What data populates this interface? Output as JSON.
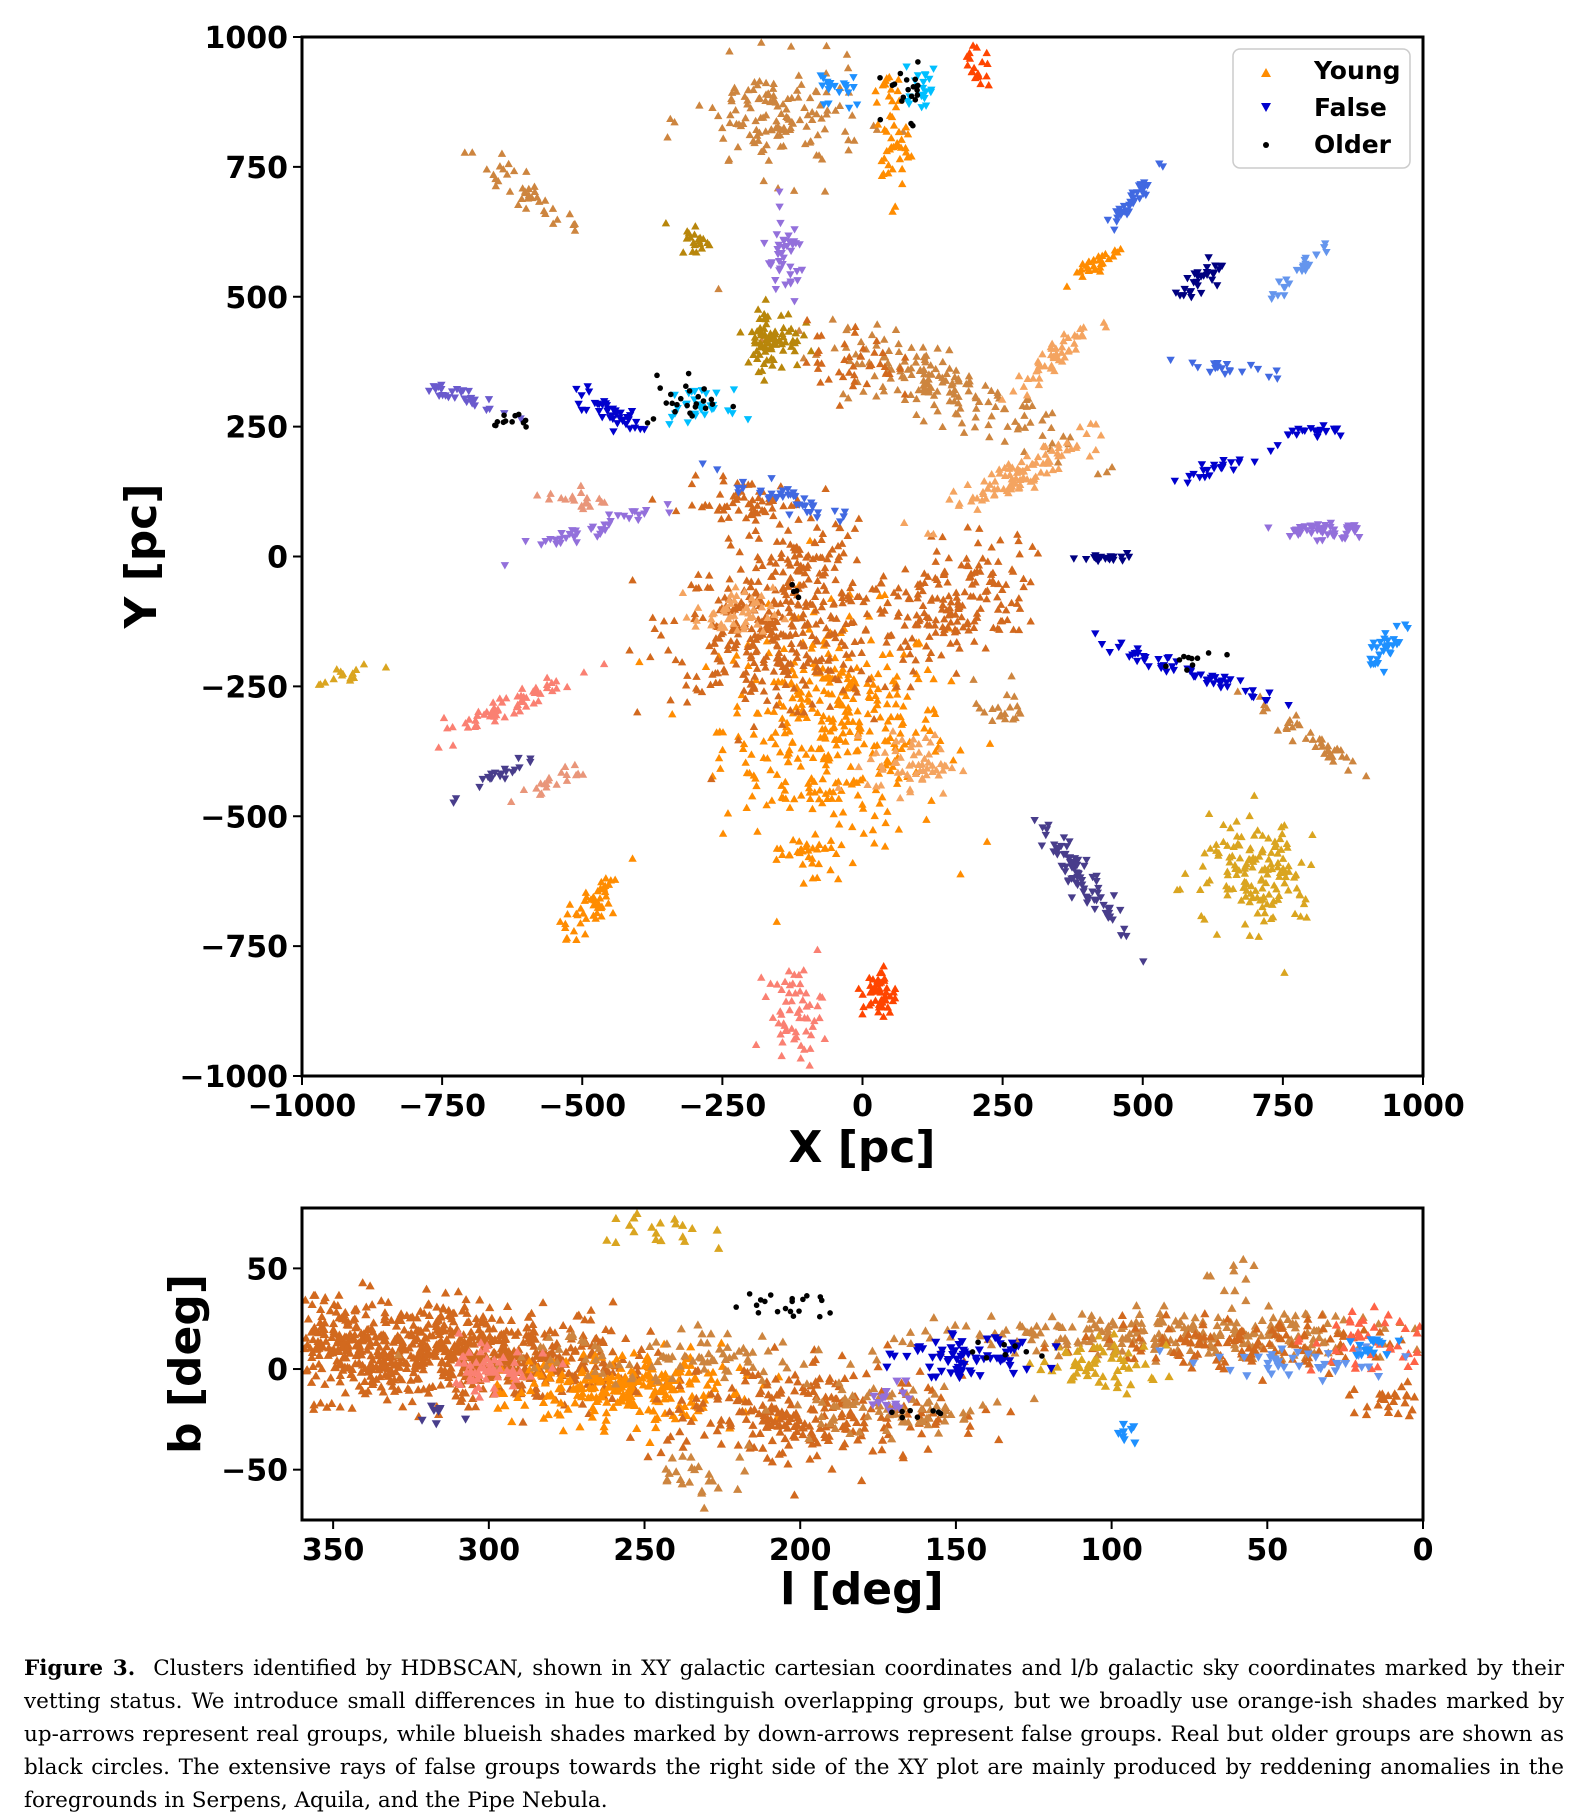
{
  "caption": {
    "label": "Figure 3.",
    "text": "Clusters identified by HDBSCAN, shown in XY galactic cartesian coordinates and l/b galactic sky coordinates marked by their vetting status. We introduce small differences in hue to distinguish overlapping groups, but we broadly use orange-ish shades marked by up-arrows represent real groups, while blueish shades marked by down-arrows represent false groups. Real but older groups are shown as black circles. The extensive rays of false groups towards the right side of the XY plot are mainly produced by reddening anomalies in the foregrounds in Serpens, Aquila, and the Pipe Nebula."
  },
  "colors": {
    "young": [
      "#ff8c00",
      "#d2691e",
      "#cd853f",
      "#f4a460",
      "#fa8072",
      "#daa520",
      "#b8860b",
      "#ff6347",
      "#ff4500",
      "#e9967a"
    ],
    "false": [
      "#0000cd",
      "#4169e1",
      "#6495ed",
      "#1e90ff",
      "#00bfff",
      "#9370db",
      "#483d8b",
      "#000080",
      "#6a5acd",
      "#7b68ee"
    ],
    "older": "#000000"
  },
  "chart_data": [
    {
      "type": "scatter",
      "xlabel": "X [pc]",
      "ylabel": "Y [pc]",
      "xlim": [
        -1000,
        1000
      ],
      "ylim": [
        -1000,
        1000
      ],
      "xticks": [
        -1000,
        -750,
        -500,
        -250,
        0,
        250,
        500,
        750,
        1000
      ],
      "yticks": [
        1000,
        750,
        500,
        250,
        0,
        -250,
        -500,
        -750,
        -1000
      ],
      "xtick_labels": [
        "−1000",
        "−750",
        "−500",
        "−250",
        "0",
        "250",
        "500",
        "750",
        "1000"
      ],
      "ytick_labels": [
        "1000",
        "750",
        "500",
        "250",
        "0",
        "−250",
        "−500",
        "−750",
        "−1000"
      ],
      "grid": false,
      "legend": {
        "position": "top-right",
        "entries": [
          {
            "label": "Young",
            "marker": "up-triangle",
            "color": "#ff8c00"
          },
          {
            "label": "False",
            "marker": "down-triangle",
            "color": "#0000cd"
          },
          {
            "label": "Older",
            "marker": "circle",
            "color": "#000000"
          }
        ]
      },
      "groups": {
        "young": [
          [
            -50,
            -330,
            100,
            110,
            0,
            380,
            0
          ],
          [
            -170,
            -160,
            90,
            70,
            -10,
            300,
            1
          ],
          [
            140,
            -100,
            85,
            55,
            30,
            200,
            1
          ],
          [
            -90,
            -20,
            50,
            45,
            0,
            90,
            1
          ],
          [
            -210,
            100,
            55,
            25,
            0,
            70,
            1
          ],
          [
            150,
            320,
            120,
            30,
            -25,
            170,
            2
          ],
          [
            -150,
            840,
            75,
            55,
            0,
            140,
            2
          ],
          [
            -600,
            700,
            55,
            12,
            -40,
            40,
            2
          ],
          [
            280,
            160,
            75,
            16,
            30,
            100,
            3
          ],
          [
            330,
            370,
            45,
            12,
            40,
            50,
            3
          ],
          [
            -230,
            -110,
            35,
            25,
            0,
            50,
            3
          ],
          [
            90,
            -400,
            40,
            30,
            0,
            60,
            3
          ],
          [
            710,
            -610,
            55,
            55,
            -40,
            150,
            5
          ],
          [
            -300,
            610,
            15,
            15,
            0,
            20,
            6
          ],
          [
            -160,
            420,
            25,
            30,
            0,
            80,
            6
          ],
          [
            -640,
            -290,
            75,
            12,
            25,
            60,
            4
          ],
          [
            -120,
            -880,
            25,
            45,
            0,
            60,
            4
          ],
          [
            30,
            -840,
            15,
            25,
            0,
            50,
            8
          ],
          [
            50,
            810,
            15,
            65,
            0,
            50,
            0
          ],
          [
            -480,
            -670,
            40,
            15,
            55,
            50,
            0
          ],
          [
            -100,
            -570,
            25,
            20,
            0,
            30,
            0
          ],
          [
            410,
            560,
            30,
            8,
            35,
            30,
            0
          ],
          [
            800,
            -350,
            70,
            10,
            -35,
            40,
            2
          ],
          [
            -520,
            110,
            35,
            8,
            -10,
            20,
            9
          ],
          [
            -560,
            -440,
            40,
            8,
            30,
            20,
            9
          ],
          [
            -920,
            -230,
            30,
            10,
            20,
            15,
            5
          ],
          [
            250,
            -290,
            25,
            25,
            0,
            20,
            2
          ],
          [
            -20,
            380,
            40,
            40,
            0,
            40,
            1
          ],
          [
            200,
            940,
            15,
            20,
            0,
            20,
            8
          ]
        ],
        "false": [
          [
            400,
            -630,
            70,
            12,
            -55,
            80,
            6
          ],
          [
            580,
            -220,
            90,
            8,
            -20,
            60,
            0
          ],
          [
            -150,
            120,
            50,
            10,
            -20,
            40,
            1
          ],
          [
            820,
            50,
            40,
            10,
            0,
            50,
            5
          ],
          [
            -700,
            300,
            40,
            8,
            -20,
            30,
            8
          ],
          [
            -450,
            280,
            40,
            10,
            -30,
            40,
            0
          ],
          [
            -480,
            50,
            60,
            10,
            20,
            40,
            5
          ],
          [
            780,
            550,
            40,
            6,
            45,
            25,
            2
          ],
          [
            610,
            540,
            30,
            10,
            30,
            30,
            7
          ],
          [
            820,
            240,
            30,
            6,
            0,
            20,
            0
          ],
          [
            940,
            -170,
            30,
            10,
            60,
            30,
            3
          ],
          [
            -140,
            570,
            20,
            40,
            0,
            40,
            5
          ],
          [
            480,
            680,
            40,
            8,
            55,
            40,
            1
          ],
          [
            -40,
            900,
            20,
            20,
            0,
            20,
            3
          ],
          [
            100,
            900,
            20,
            20,
            0,
            20,
            4
          ],
          [
            -650,
            -420,
            35,
            6,
            30,
            20,
            6
          ],
          [
            430,
            0,
            40,
            5,
            0,
            20,
            7
          ],
          [
            630,
            170,
            40,
            6,
            20,
            25,
            0
          ],
          [
            -300,
            290,
            30,
            15,
            0,
            30,
            4
          ],
          [
            660,
            360,
            40,
            6,
            -10,
            20,
            1
          ]
        ],
        "older": [
          [
            -310,
            300,
            35,
            25,
            25
          ],
          [
            -620,
            260,
            25,
            8,
            12
          ],
          [
            580,
            -200,
            30,
            8,
            10
          ],
          [
            80,
            900,
            20,
            30,
            20
          ],
          [
            -120,
            -70,
            10,
            10,
            4
          ]
        ]
      }
    },
    {
      "type": "scatter",
      "xlabel": "l [deg]",
      "ylabel": "b [deg]",
      "xlim": [
        360,
        0
      ],
      "ylim": [
        -75,
        80
      ],
      "xticks": [
        350,
        300,
        250,
        200,
        150,
        100,
        50,
        0
      ],
      "yticks": [
        50,
        0,
        -50
      ],
      "xtick_labels": [
        "350",
        "300",
        "250",
        "200",
        "150",
        "100",
        "50",
        "0"
      ],
      "ytick_labels": [
        "50",
        "0",
        "−50"
      ],
      "grid": false,
      "groups": {
        "young": [
          [
            335,
            10,
            30,
            12,
            0,
            700,
            1
          ],
          [
            285,
            3,
            20,
            10,
            0,
            220,
            1
          ],
          [
            255,
            -10,
            20,
            8,
            0,
            260,
            0
          ],
          [
            200,
            -22,
            25,
            12,
            0,
            260,
            1
          ],
          [
            170,
            -20,
            15,
            6,
            0,
            80,
            2
          ],
          [
            240,
            5,
            25,
            6,
            0,
            90,
            2
          ],
          [
            300,
            -2,
            8,
            6,
            0,
            60,
            4
          ],
          [
            80,
            17,
            40,
            6,
            0,
            260,
            2
          ],
          [
            60,
            12,
            25,
            6,
            0,
            120,
            1
          ],
          [
            105,
            2,
            12,
            6,
            0,
            60,
            5
          ],
          [
            15,
            15,
            12,
            10,
            0,
            50,
            7
          ],
          [
            240,
            68,
            10,
            4,
            0,
            20,
            5
          ],
          [
            230,
            -52,
            12,
            6,
            0,
            25,
            2
          ],
          [
            60,
            45,
            5,
            6,
            0,
            10,
            2
          ],
          [
            10,
            -15,
            10,
            5,
            0,
            30,
            1
          ]
        ],
        "false": [
          [
            145,
            8,
            10,
            6,
            0,
            70,
            0
          ],
          [
            35,
            3,
            15,
            5,
            0,
            40,
            2
          ],
          [
            15,
            10,
            5,
            4,
            0,
            15,
            3
          ],
          [
            170,
            -15,
            6,
            4,
            0,
            15,
            5
          ],
          [
            95,
            -32,
            3,
            3,
            0,
            8,
            3
          ],
          [
            315,
            -22,
            5,
            3,
            0,
            8,
            6
          ]
        ],
        "older": [
          [
            205,
            32,
            8,
            4,
            20
          ],
          [
            162,
            -22,
            4,
            2,
            8
          ],
          [
            135,
            8,
            6,
            3,
            8
          ]
        ]
      }
    }
  ]
}
